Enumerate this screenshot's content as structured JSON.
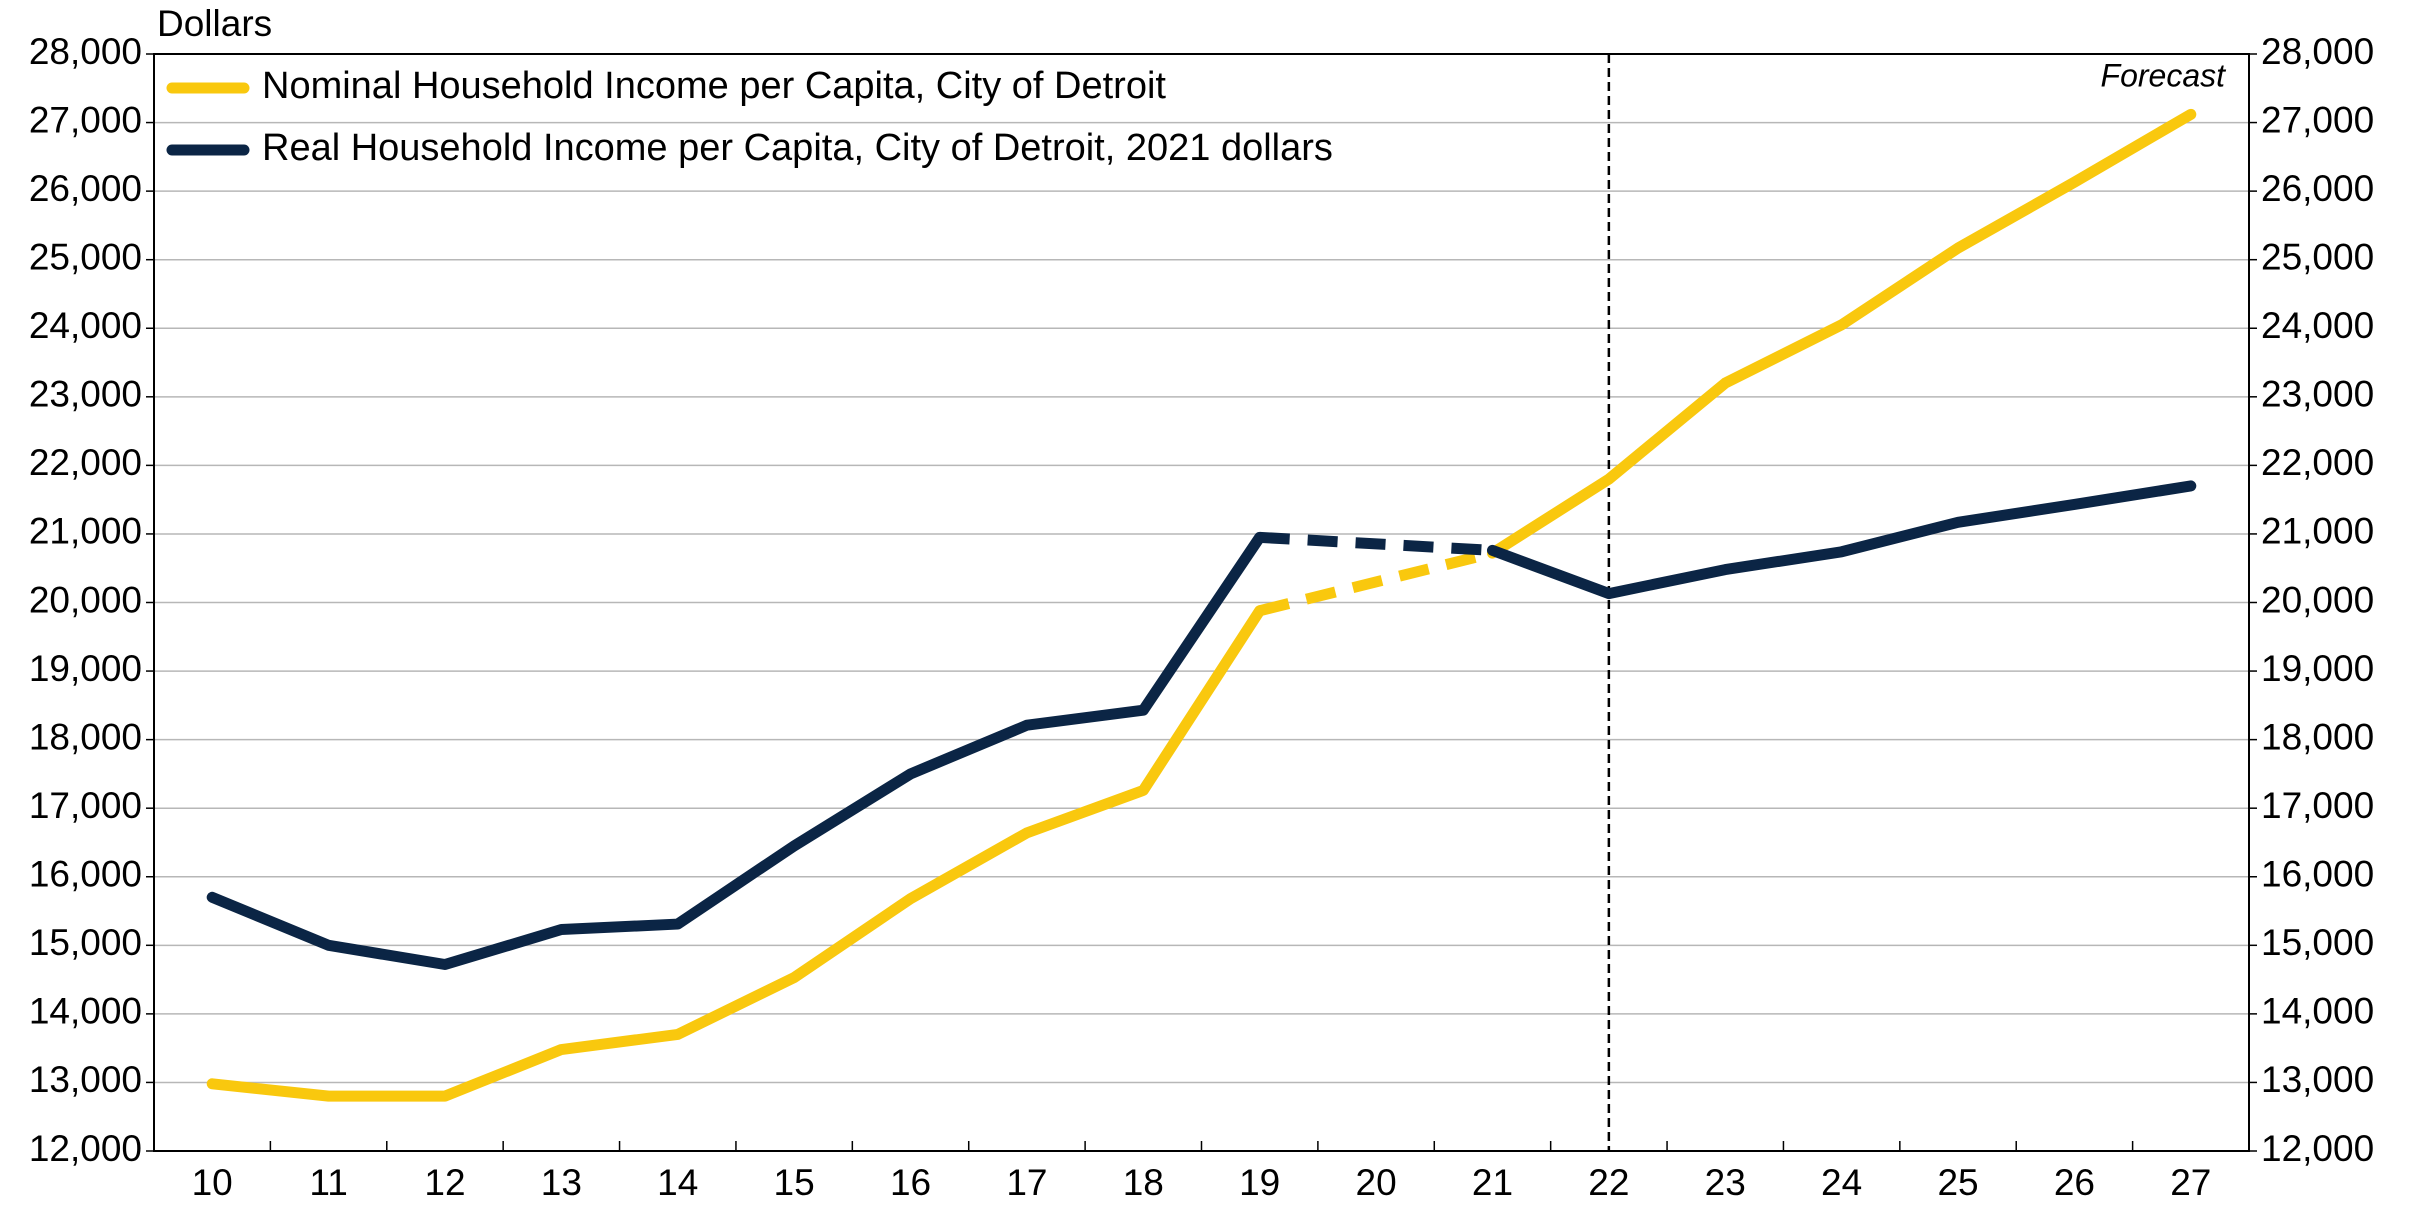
{
  "chart_data": {
    "type": "line",
    "y_label": "Dollars",
    "annotation": "Forecast",
    "forecast_start": "22",
    "bridge_gaps": "dashed",
    "grid": true,
    "legend": "top-left",
    "categories": [
      "10",
      "11",
      "12",
      "13",
      "14",
      "15",
      "16",
      "17",
      "18",
      "19",
      "20",
      "21",
      "22",
      "23",
      "24",
      "25",
      "26",
      "27"
    ],
    "series": [
      {
        "name": "Nominal Household Income per Capita, City of Detroit",
        "color": "#f9c80e",
        "values": [
          12980,
          12800,
          12800,
          13480,
          13700,
          14530,
          15680,
          16640,
          17260,
          19880,
          null,
          20720,
          21800,
          23200,
          24050,
          25170,
          26130,
          27120
        ]
      },
      {
        "name": "Real Household Income per Capita, City of Detroit, 2021 dollars",
        "color": "#0b2545",
        "values": [
          15700,
          15000,
          14720,
          15230,
          15310,
          16450,
          17500,
          18210,
          18430,
          20950,
          null,
          20760,
          20130,
          20480,
          20740,
          21170,
          21430,
          21700
        ]
      }
    ],
    "ylim": [
      12000,
      28000
    ],
    "yticks": [
      {
        "value": 12000,
        "label": "12,000"
      },
      {
        "value": 13000,
        "label": "13,000"
      },
      {
        "value": 14000,
        "label": "14,000"
      },
      {
        "value": 15000,
        "label": "15,000"
      },
      {
        "value": 16000,
        "label": "16,000"
      },
      {
        "value": 17000,
        "label": "17,000"
      },
      {
        "value": 18000,
        "label": "18,000"
      },
      {
        "value": 19000,
        "label": "19,000"
      },
      {
        "value": 20000,
        "label": "20,000"
      },
      {
        "value": 21000,
        "label": "21,000"
      },
      {
        "value": 22000,
        "label": "22,000"
      },
      {
        "value": 23000,
        "label": "23,000"
      },
      {
        "value": 24000,
        "label": "24,000"
      },
      {
        "value": 25000,
        "label": "25,000"
      },
      {
        "value": 26000,
        "label": "26,000"
      },
      {
        "value": 27000,
        "label": "27,000"
      },
      {
        "value": 28000,
        "label": "28,000"
      }
    ],
    "y2lim": [
      12000,
      28000
    ],
    "y2ticks": [
      {
        "value": 12000,
        "label": "12,000"
      },
      {
        "value": 13000,
        "label": "13,000"
      },
      {
        "value": 14000,
        "label": "14,000"
      },
      {
        "value": 15000,
        "label": "15,000"
      },
      {
        "value": 16000,
        "label": "16,000"
      },
      {
        "value": 17000,
        "label": "17,000"
      },
      {
        "value": 18000,
        "label": "18,000"
      },
      {
        "value": 19000,
        "label": "19,000"
      },
      {
        "value": 20000,
        "label": "20,000"
      },
      {
        "value": 21000,
        "label": "21,000"
      },
      {
        "value": 22000,
        "label": "22,000"
      },
      {
        "value": 23000,
        "label": "23,000"
      },
      {
        "value": 24000,
        "label": "24,000"
      },
      {
        "value": 25000,
        "label": "25,000"
      },
      {
        "value": 26000,
        "label": "26,000"
      },
      {
        "value": 27000,
        "label": "27,000"
      },
      {
        "value": 28000,
        "label": "28,000"
      }
    ]
  }
}
